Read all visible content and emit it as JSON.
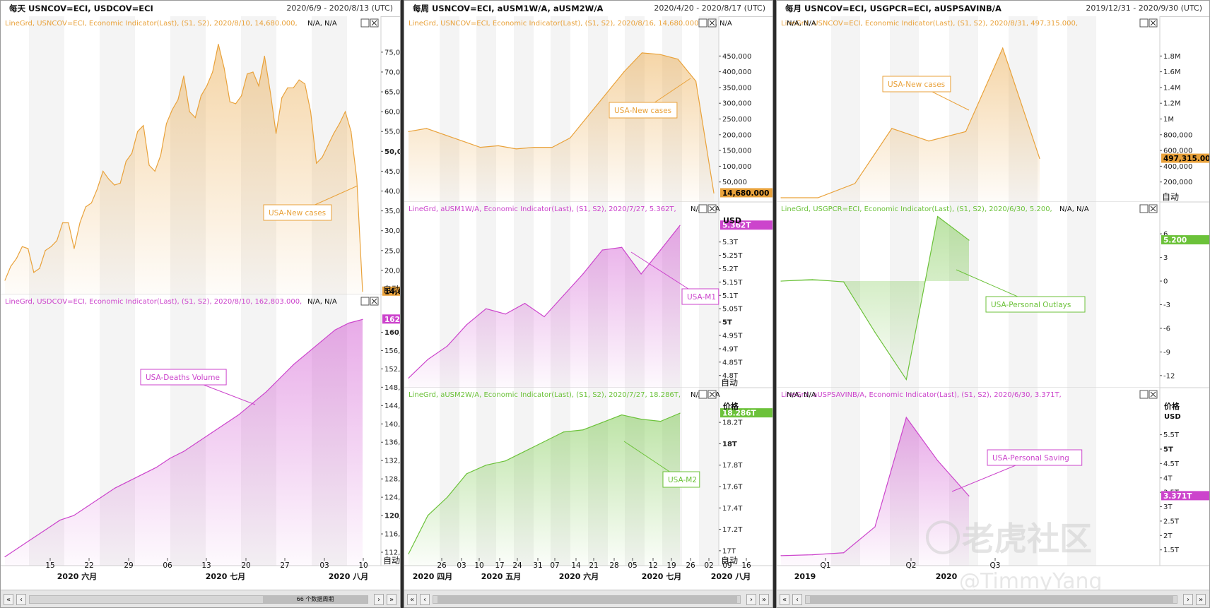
{
  "windows": [
    {
      "title": "每天 USNCOV=ECI, USDCOV=ECI",
      "range": "2020/6/9 - 2020/8/13 (UTC)",
      "scroll_label": "66 个数据周期",
      "x_labels": [
        "15",
        "22",
        "29",
        "06",
        "13",
        "20",
        "27",
        "03",
        "10"
      ],
      "month_labels": [
        "2020 六月",
        "2020 七月",
        "2020 八月"
      ],
      "panels": [
        {
          "legend": "LineGrd, USNCOV=ECI, Economic Indicator(Last), (S1, S2), 2020/8/10, 14,680.000,",
          "legend_na": "N/A, N/A",
          "annotation": "USA-New cases",
          "last_value": "14,680.000",
          "auto_label": "自动",
          "color": "#e9a23b",
          "y_ticks": [
            "20,000",
            "25,000",
            "30,000",
            "35,000",
            "40,000",
            "45,000",
            "50,000",
            "55,000",
            "60,000",
            "65,000",
            "70,000",
            "75,000"
          ],
          "bold_ticks": [
            "50,000"
          ]
        },
        {
          "legend": "LineGrd, USDCOV=ECI, Economic Indicator(Last), (S1, S2), 2020/8/10, 162,803.000,",
          "legend_na": "N/A, N/A",
          "annotation": "USA-Deaths Volume",
          "last_value": "162,803.000",
          "auto_label": "自动",
          "color": "#cc44cc",
          "y_ticks": [
            "112,000",
            "116,000",
            "120,000",
            "124,000",
            "128,000",
            "132,000",
            "136,000",
            "140,000",
            "144,000",
            "148,000",
            "152,000",
            "156,000",
            "160,000"
          ],
          "bold_ticks": [
            "120,000",
            "160,000"
          ]
        }
      ]
    },
    {
      "title": "每周 USNCOV=ECI, aUSM1W/A, aUSM2W/A",
      "range": "2020/4/20 - 2020/8/17 (UTC)",
      "x_labels": [
        "26",
        "03",
        "10",
        "17",
        "24",
        "31",
        "07",
        "14",
        "21",
        "28",
        "05",
        "12",
        "19",
        "26",
        "02",
        "09",
        "16"
      ],
      "month_labels": [
        "2020 四月",
        "2020 五月",
        "2020 六月",
        "2020 七月",
        "2020 八月"
      ],
      "panels": [
        {
          "legend": "LineGrd, USNCOV=ECI, Economic Indicator(Last), (S1, S2), 2020/8/16, 14,680.000,",
          "legend_na": "N/A, N/A",
          "annotation": "USA-New cases",
          "last_value": "14,680.000",
          "color": "#e9a23b",
          "y_ticks": [
            "50,000",
            "100,000",
            "150,000",
            "200,000",
            "250,000",
            "300,000",
            "350,000",
            "400,000",
            "450,000"
          ],
          "bold_ticks": []
        },
        {
          "legend": "LineGrd, aUSM1W/A, Economic Indicator(Last), (S1, S2), 2020/7/27, 5.362T,",
          "legend_na": "N/A, N/A",
          "annotation": "USA-M1",
          "last_value": "5.362T",
          "unit": "USD",
          "auto_label": "自动",
          "color": "#cc44cc",
          "y_ticks": [
            "4.8T",
            "4.85T",
            "4.9T",
            "4.95T",
            "5T",
            "5.05T",
            "5.1T",
            "5.15T",
            "5.2T",
            "5.25T",
            "5.3T"
          ],
          "bold_ticks": [
            "5T"
          ]
        },
        {
          "legend": "LineGrd, aUSM2W/A, Economic Indicator(Last), (S1, S2), 2020/7/27, 18.286T,",
          "legend_na": "N/A, N/A",
          "annotation": "USA-M2",
          "last_value": "18.286T",
          "unit": "价格",
          "auto_label": "自动",
          "color": "#6cc23a",
          "y_ticks": [
            "17T",
            "17.2T",
            "17.4T",
            "17.6T",
            "17.8T",
            "18T",
            "18.2T"
          ],
          "bold_ticks": [
            "18T"
          ]
        }
      ]
    },
    {
      "title": "每月 USNCOV=ECI, USGPCR=ECI, aUSPSAVINB/A",
      "range": "2019/12/31 - 2020/9/30 (UTC)",
      "x_labels": [
        "Q1",
        "Q2",
        "Q3"
      ],
      "month_labels": [
        "2019",
        "2020"
      ],
      "watermark": "老虎社区",
      "watermark_user": "@TimmyYang",
      "panels": [
        {
          "legend": "LineGrd, USNCOV=ECI, Economic Indicator(Last), (S1, S2), 2020/8/31, 497,315.000,",
          "legend_na": "N/A, N/A",
          "annotation": "USA-New cases",
          "last_value": "497,315.00",
          "auto_label": "自动",
          "color": "#e9a23b",
          "y_ticks": [
            "200,000",
            "400,000",
            "600,000",
            "800,000",
            "1M",
            "1.2M",
            "1.4M",
            "1.6M",
            "1.8M"
          ],
          "bold_ticks": []
        },
        {
          "legend": "LineGrd, USGPCR=ECI, Economic Indicator(Last), (S1, S2), 2020/6/30, 5.200,",
          "legend_na": "N/A, N/A",
          "annotation": "USA-Personal Outlays",
          "last_value": "5.200",
          "color": "#6cc23a",
          "y_ticks": [
            "-12",
            "-9",
            "-6",
            "-3",
            "0",
            "3",
            "6"
          ],
          "bold_ticks": []
        },
        {
          "legend": "LineGrd, aUSPSAVINB/A, Economic Indicator(Last), (S1, S2), 2020/6/30, 3.371T,",
          "legend_na": "N/A, N/A",
          "annotation": "USA-Personal Saving",
          "last_value": "3.371T",
          "unit": "价格",
          "unit2": "USD",
          "color": "#cc44cc",
          "y_ticks": [
            "1.5T",
            "2T",
            "2.5T",
            "3T",
            "3.5T",
            "4T",
            "4.5T",
            "5T",
            "5.5T"
          ],
          "bold_ticks": [
            "5T"
          ]
        }
      ]
    }
  ],
  "chart_data": [
    {
      "type": "area",
      "title": "USA-New cases (daily)",
      "x": [
        "2020-06-09",
        "2020-06-10",
        "2020-06-11",
        "2020-06-12",
        "2020-06-13",
        "2020-06-14",
        "2020-06-15",
        "2020-06-16",
        "2020-06-17",
        "2020-06-18",
        "2020-06-19",
        "2020-06-20",
        "2020-06-21",
        "2020-06-22",
        "2020-06-23",
        "2020-06-24",
        "2020-06-25",
        "2020-06-26",
        "2020-06-27",
        "2020-06-28",
        "2020-06-29",
        "2020-06-30",
        "2020-07-01",
        "2020-07-02",
        "2020-07-03",
        "2020-07-04",
        "2020-07-05",
        "2020-07-06",
        "2020-07-07",
        "2020-07-08",
        "2020-07-09",
        "2020-07-10",
        "2020-07-11",
        "2020-07-12",
        "2020-07-13",
        "2020-07-14",
        "2020-07-15",
        "2020-07-16",
        "2020-07-17",
        "2020-07-18",
        "2020-07-19",
        "2020-07-20",
        "2020-07-21",
        "2020-07-22",
        "2020-07-23",
        "2020-07-24",
        "2020-07-25",
        "2020-07-26",
        "2020-07-27",
        "2020-07-28",
        "2020-07-29",
        "2020-07-30",
        "2020-07-31",
        "2020-08-01",
        "2020-08-02",
        "2020-08-03",
        "2020-08-04",
        "2020-08-05",
        "2020-08-06",
        "2020-08-07",
        "2020-08-08",
        "2020-08-09",
        "2020-08-10"
      ],
      "values": [
        17500,
        21000,
        23000,
        26000,
        25500,
        19500,
        20500,
        25000,
        26000,
        27500,
        32000,
        32000,
        25500,
        32000,
        36000,
        37000,
        40500,
        45000,
        43000,
        41500,
        42000,
        47500,
        49500,
        55000,
        56500,
        46500,
        45000,
        49000,
        57000,
        60500,
        63000,
        69000,
        60000,
        58500,
        64000,
        66500,
        70000,
        77000,
        71000,
        62500,
        62000,
        64000,
        69500,
        70000,
        66500,
        74000,
        65000,
        54500,
        63500,
        66000,
        66000,
        68000,
        67000,
        60000,
        47000,
        48500,
        51500,
        54500,
        57000,
        60000,
        55000,
        43000,
        14680
      ],
      "ylim": [
        15000,
        78000
      ]
    },
    {
      "type": "area",
      "title": "USA-Deaths Volume",
      "x_range": [
        "2020-06-09",
        "2020-08-10"
      ],
      "values": [
        111000,
        113000,
        115000,
        117000,
        119000,
        120000,
        122000,
        124000,
        126000,
        127500,
        129000,
        130500,
        132500,
        134000,
        136000,
        138000,
        140000,
        142000,
        144500,
        147000,
        150000,
        153000,
        155500,
        158000,
        160500,
        162000,
        162803
      ],
      "ylim": [
        110000,
        163000
      ]
    },
    {
      "type": "area",
      "title": "USA-New cases (weekly)",
      "x": [
        "2020-04-20",
        "2020-04-27",
        "2020-05-04",
        "2020-05-11",
        "2020-05-18",
        "2020-05-25",
        "2020-06-01",
        "2020-06-08",
        "2020-06-15",
        "2020-06-22",
        "2020-06-29",
        "2020-07-06",
        "2020-07-13",
        "2020-07-20",
        "2020-07-27",
        "2020-08-03",
        "2020-08-10",
        "2020-08-16"
      ],
      "values": [
        210000,
        220000,
        200000,
        180000,
        160000,
        165000,
        155000,
        160000,
        160000,
        190000,
        260000,
        330000,
        400000,
        460000,
        455000,
        440000,
        370000,
        14680
      ],
      "ylim": [
        0,
        500000
      ]
    },
    {
      "type": "area",
      "title": "USA-M1",
      "x": [
        "2020-04-20",
        "2020-04-27",
        "2020-05-04",
        "2020-05-11",
        "2020-05-18",
        "2020-05-25",
        "2020-06-01",
        "2020-06-08",
        "2020-06-15",
        "2020-06-22",
        "2020-06-29",
        "2020-07-06",
        "2020-07-13",
        "2020-07-20",
        "2020-07-27"
      ],
      "values": [
        4.79,
        4.86,
        4.91,
        4.99,
        5.05,
        5.03,
        5.07,
        5.02,
        5.1,
        5.18,
        5.27,
        5.28,
        5.18,
        5.27,
        5.362
      ],
      "ylim": [
        4.77,
        5.36
      ]
    },
    {
      "type": "area",
      "title": "USA-M2",
      "x": [
        "2020-04-20",
        "2020-04-27",
        "2020-05-04",
        "2020-05-11",
        "2020-05-18",
        "2020-05-25",
        "2020-06-01",
        "2020-06-08",
        "2020-06-15",
        "2020-06-22",
        "2020-06-29",
        "2020-07-06",
        "2020-07-13",
        "2020-07-20",
        "2020-07-27"
      ],
      "values": [
        16.97,
        17.33,
        17.5,
        17.72,
        17.8,
        17.84,
        17.93,
        18.02,
        18.11,
        18.13,
        18.2,
        18.27,
        18.23,
        18.21,
        18.286
      ],
      "ylim": [
        16.9,
        18.3
      ]
    },
    {
      "type": "area",
      "title": "USA-New cases (monthly)",
      "x": [
        "2020-01-31",
        "2020-02-29",
        "2020-03-31",
        "2020-04-30",
        "2020-05-31",
        "2020-06-30",
        "2020-07-31",
        "2020-08-31"
      ],
      "values": [
        10,
        20,
        180000,
        880000,
        720000,
        840000,
        1900000,
        497315
      ],
      "ylim": [
        0,
        2000000
      ]
    },
    {
      "type": "area",
      "title": "USA-Personal Outlays",
      "x": [
        "2019-12-31",
        "2020-01-31",
        "2020-02-29",
        "2020-03-31",
        "2020-04-30",
        "2020-05-31",
        "2020-06-30"
      ],
      "values": [
        0,
        0.2,
        -0.1,
        -6.5,
        -12.5,
        8.2,
        5.2
      ],
      "ylim": [
        -13,
        7
      ]
    },
    {
      "type": "area",
      "title": "USA-Personal Saving",
      "x": [
        "2019-12-31",
        "2020-01-31",
        "2020-02-29",
        "2020-03-31",
        "2020-04-30",
        "2020-05-31",
        "2020-06-30"
      ],
      "values": [
        1.3,
        1.33,
        1.4,
        2.3,
        6.1,
        4.6,
        3.371
      ],
      "ylim": [
        1.1,
        6.3
      ]
    }
  ]
}
